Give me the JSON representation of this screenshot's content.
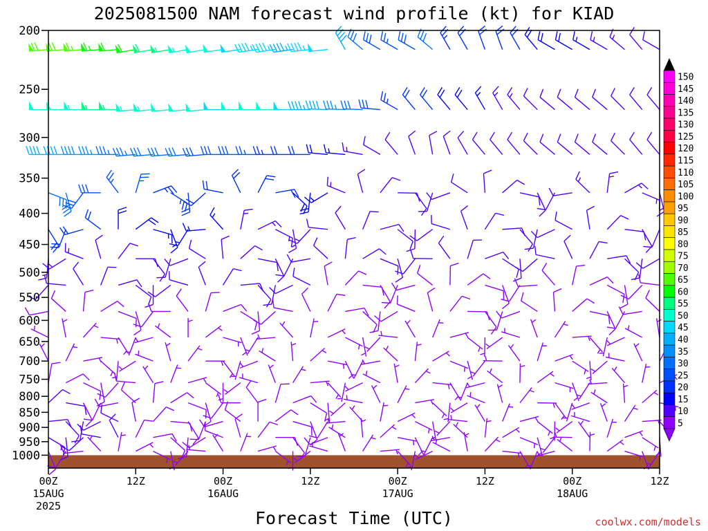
{
  "chart_data": {
    "type": "wind-barb-timeseries",
    "title": "2025081500 NAM forecast wind profile (kt) for KIAD",
    "xlabel": "Forecast Time (UTC)",
    "credit": "coolwx.com/models",
    "y_axis": {
      "unit": "hPa",
      "log_scale": true,
      "reversed": true,
      "range": [
        200,
        1050
      ],
      "ticks": [
        "200",
        "250",
        "300",
        "350",
        "400",
        "450",
        "500",
        "550",
        "600",
        "650",
        "700",
        "750",
        "800",
        "850",
        "900",
        "950",
        "1000"
      ]
    },
    "x_axis": {
      "range_hours": [
        0,
        84
      ],
      "ticks": [
        {
          "hour": 0,
          "line1": "00Z",
          "line2": "15AUG",
          "line3": "2025"
        },
        {
          "hour": 12,
          "line1": "12Z",
          "line2": "",
          "line3": ""
        },
        {
          "hour": 24,
          "line1": "00Z",
          "line2": "16AUG",
          "line3": ""
        },
        {
          "hour": 36,
          "line1": "12Z",
          "line2": "",
          "line3": ""
        },
        {
          "hour": 48,
          "line1": "00Z",
          "line2": "17AUG",
          "line3": ""
        },
        {
          "hour": 60,
          "line1": "12Z",
          "line2": "",
          "line3": ""
        },
        {
          "hour": 72,
          "line1": "00Z",
          "line2": "18AUG",
          "line3": ""
        },
        {
          "hour": 84,
          "line1": "12Z",
          "line2": "",
          "line3": ""
        }
      ]
    },
    "colorbar": {
      "labels": [
        "150",
        "145",
        "140",
        "135",
        "130",
        "125",
        "120",
        "115",
        "110",
        "105",
        "100",
        "95",
        "90",
        "85",
        "80",
        "75",
        "70",
        "65",
        "60",
        "55",
        "50",
        "45",
        "40",
        "35",
        "30",
        "25",
        "20",
        "15",
        "10",
        "5"
      ],
      "colors": [
        "#ff00ff",
        "#ff00d8",
        "#ff00b4",
        "#ff0090",
        "#ff006c",
        "#ff0048",
        "#ff0000",
        "#ff2800",
        "#ff5000",
        "#ff7000",
        "#ff8c00",
        "#ffa000",
        "#ffc800",
        "#ffe600",
        "#ffff00",
        "#d2ff00",
        "#a0ff00",
        "#50ff00",
        "#00ff00",
        "#00ff80",
        "#00ffcc",
        "#00d8ff",
        "#00b0ff",
        "#0090ff",
        "#0070ff",
        "#0050ff",
        "#0030ff",
        "#0000ff",
        "#5000ff",
        "#9000ff"
      ]
    },
    "terrain": {
      "pressure_top": 1000,
      "color": "#a0522d"
    },
    "levels": [
      {
        "p": 215,
        "speed": [
          68,
          68,
          66,
          64,
          62,
          60,
          58,
          56,
          54,
          52,
          50,
          48,
          46,
          45,
          44,
          46,
          48,
          40,
          32,
          28,
          26,
          28,
          30,
          24,
          20,
          22,
          20,
          20,
          18,
          18,
          18,
          16,
          14,
          14,
          12,
          12
        ],
        "dir": [
          265,
          265,
          265,
          265,
          265,
          260,
          260,
          260,
          260,
          260,
          262,
          262,
          262,
          262,
          262,
          264,
          264,
          330,
          310,
          300,
          300,
          300,
          310,
          330,
          330,
          340,
          340,
          330,
          320,
          300,
          300,
          300,
          300,
          310,
          320,
          300
        ]
      },
      {
        "p": 270,
        "speed": [
          52,
          52,
          54,
          56,
          55,
          54,
          53,
          52,
          50,
          50,
          48,
          50,
          52,
          50,
          48,
          44,
          40,
          36,
          32,
          28,
          24,
          22,
          20,
          18,
          18,
          16,
          14,
          14,
          12,
          12,
          12,
          12,
          12,
          12,
          12,
          12
        ],
        "dir": [
          270,
          270,
          270,
          270,
          270,
          265,
          265,
          265,
          265,
          265,
          270,
          270,
          270,
          270,
          270,
          270,
          272,
          272,
          272,
          275,
          300,
          320,
          320,
          320,
          320,
          330,
          330,
          320,
          315,
          310,
          310,
          310,
          310,
          315,
          320,
          320
        ]
      },
      {
        "p": 320,
        "speed": [
          40,
          40,
          38,
          36,
          34,
          34,
          32,
          30,
          30,
          28,
          28,
          28,
          26,
          24,
          22,
          20,
          18,
          16,
          14,
          12,
          10,
          10,
          10,
          10,
          10,
          10,
          10,
          10,
          10,
          10,
          10,
          10,
          10,
          10,
          10,
          10
        ],
        "dir": [
          270,
          270,
          270,
          270,
          270,
          265,
          265,
          265,
          265,
          265,
          270,
          270,
          270,
          270,
          270,
          270,
          275,
          275,
          280,
          300,
          320,
          340,
          350,
          340,
          330,
          320,
          320,
          320,
          315,
          310,
          310,
          310,
          310,
          315,
          320,
          320
        ]
      },
      {
        "p": 370,
        "speed": [
          30,
          30,
          28,
          28,
          26,
          26,
          24,
          24,
          22,
          22,
          22,
          22,
          20,
          20,
          18,
          18,
          16,
          14,
          12,
          12,
          12,
          12,
          12,
          12,
          12,
          12,
          12,
          12,
          12,
          12,
          12,
          14,
          14,
          14,
          14,
          14
        ]
      },
      {
        "p": 425,
        "speed": [
          22,
          22,
          20,
          20,
          18,
          18,
          16,
          16,
          16,
          16,
          16,
          14,
          14,
          14,
          14,
          14,
          12,
          12,
          12,
          10,
          10,
          10,
          10,
          12,
          12,
          12,
          12,
          12,
          12,
          12,
          12,
          12,
          12,
          12,
          12,
          12
        ]
      },
      {
        "p": 475,
        "speed": [
          14,
          14,
          14,
          12,
          12,
          12,
          12,
          12,
          12,
          12,
          12,
          12,
          12,
          12,
          12,
          12,
          10,
          10,
          10,
          10,
          10,
          10,
          10,
          10,
          10,
          10,
          10,
          10,
          10,
          10,
          10,
          10,
          10,
          10,
          10,
          10
        ]
      },
      {
        "p": 525,
        "speed": [
          10,
          10,
          10,
          10,
          10,
          10,
          10,
          10,
          10,
          10,
          10,
          10,
          10,
          10,
          10,
          10,
          8,
          8,
          8,
          8,
          8,
          8,
          8,
          8,
          8,
          8,
          8,
          8,
          8,
          8,
          8,
          8,
          8,
          8,
          8,
          8
        ]
      },
      {
        "p": 580,
        "speed": [
          8,
          8,
          8,
          8,
          8,
          8,
          8,
          8,
          8,
          8,
          8,
          8,
          8,
          8,
          8,
          8,
          8,
          8,
          8,
          8,
          8,
          8,
          8,
          8,
          8,
          8,
          8,
          8,
          8,
          8,
          8,
          8,
          8,
          8,
          8,
          8
        ]
      },
      {
        "p": 640,
        "speed": [
          6,
          6,
          6,
          6,
          6,
          6,
          6,
          6,
          6,
          6,
          6,
          6,
          6,
          6,
          6,
          6,
          6,
          6,
          6,
          6,
          6,
          6,
          6,
          6,
          6,
          6,
          6,
          6,
          6,
          6,
          6,
          6,
          6,
          6,
          6,
          6
        ]
      },
      {
        "p": 700,
        "speed": [
          6,
          6,
          6,
          6,
          6,
          6,
          6,
          6,
          6,
          6,
          6,
          6,
          6,
          6,
          6,
          6,
          6,
          6,
          6,
          6,
          6,
          6,
          6,
          6,
          6,
          6,
          6,
          6,
          6,
          6,
          6,
          6,
          6,
          6,
          6,
          6
        ]
      },
      {
        "p": 760,
        "speed": [
          8,
          8,
          8,
          8,
          8,
          8,
          6,
          6,
          6,
          6,
          6,
          6,
          6,
          6,
          6,
          6,
          6,
          6,
          6,
          6,
          6,
          6,
          6,
          6,
          6,
          6,
          6,
          6,
          6,
          6,
          6,
          6,
          6,
          6,
          6,
          6
        ]
      },
      {
        "p": 820,
        "speed": [
          10,
          10,
          8,
          8,
          8,
          8,
          8,
          8,
          8,
          8,
          8,
          8,
          8,
          8,
          8,
          8,
          6,
          6,
          6,
          6,
          6,
          6,
          6,
          6,
          6,
          6,
          6,
          6,
          6,
          6,
          6,
          6,
          6,
          6,
          6,
          6
        ]
      },
      {
        "p": 880,
        "speed": [
          12,
          10,
          10,
          10,
          10,
          8,
          8,
          8,
          8,
          8,
          8,
          8,
          8,
          8,
          8,
          8,
          8,
          6,
          6,
          6,
          6,
          6,
          6,
          6,
          6,
          6,
          6,
          6,
          6,
          6,
          6,
          6,
          6,
          6,
          6,
          6
        ]
      },
      {
        "p": 935,
        "speed": [
          14,
          12,
          10,
          10,
          10,
          8,
          8,
          8,
          8,
          8,
          8,
          8,
          8,
          8,
          8,
          8,
          8,
          6,
          6,
          6,
          6,
          6,
          6,
          6,
          6,
          6,
          6,
          6,
          6,
          6,
          6,
          6,
          6,
          6,
          6,
          6
        ]
      },
      {
        "p": 985,
        "speed": [
          8,
          8,
          8,
          6,
          6,
          6,
          6,
          6,
          6,
          6,
          6,
          6,
          6,
          6,
          6,
          6,
          6,
          6,
          6,
          6,
          6,
          6,
          6,
          6,
          6,
          6,
          6,
          6,
          6,
          6,
          6,
          6,
          6,
          6,
          6,
          6
        ]
      }
    ]
  }
}
